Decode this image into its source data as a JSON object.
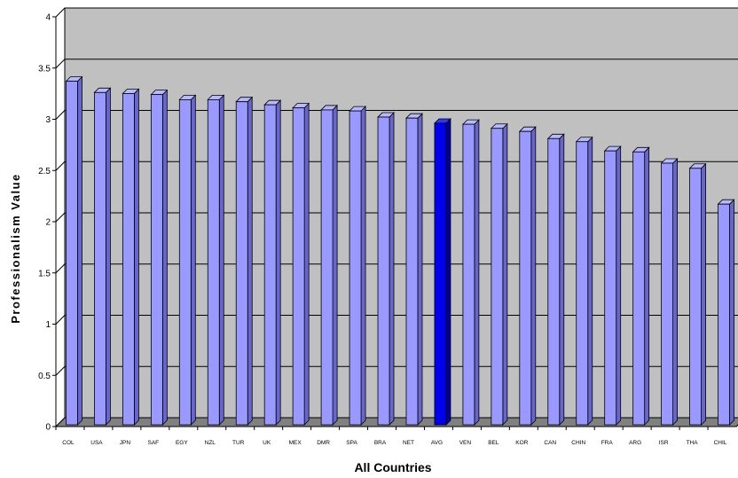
{
  "chart_data": {
    "type": "bar",
    "title": "",
    "xlabel": "All Countries",
    "ylabel": "Professionalism Value",
    "ylim": [
      0,
      4
    ],
    "yticks": [
      "0",
      "0.5",
      "1",
      "1.5",
      "2",
      "2.5",
      "3",
      "3.5",
      "4"
    ],
    "grid": true,
    "style": "3d",
    "categories": [
      "COL",
      "USA",
      "JPN",
      "SAF",
      "EGY",
      "NZL",
      "TUR",
      "UK",
      "MEX",
      "DMR",
      "SPA",
      "BRA",
      "NET",
      "AVG",
      "VEN",
      "BEL",
      "KOR",
      "CAN",
      "CHIN",
      "FRA",
      "ARG",
      "ISR",
      "THA",
      "CHIL"
    ],
    "values": [
      3.38,
      3.27,
      3.26,
      3.25,
      3.2,
      3.2,
      3.18,
      3.15,
      3.12,
      3.1,
      3.09,
      3.03,
      3.02,
      2.97,
      2.96,
      2.92,
      2.89,
      2.82,
      2.79,
      2.7,
      2.69,
      2.58,
      2.53,
      2.18
    ],
    "highlight": "AVG",
    "colors": {
      "bar_face": "#9999ff",
      "bar_top": "#b8b8ff",
      "bar_side": "#6666cc",
      "highlight_face": "#0000ee",
      "highlight_top": "#3333ff",
      "highlight_side": "#00009a",
      "plot_wall": "#c0c0c0",
      "floor": "#808080"
    }
  }
}
